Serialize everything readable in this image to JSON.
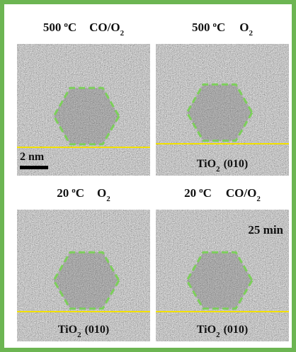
{
  "panels": [
    {
      "temperature": "500",
      "degree": "o",
      "unit": "C",
      "gas": "CO/O",
      "gas_subscript": "2",
      "scale_bar": "2 nm"
    },
    {
      "temperature": "500",
      "degree": "o",
      "unit": "C",
      "gas": "O",
      "gas_subscript": "2",
      "substrate": "TiO",
      "substrate_subscript": "2",
      "substrate_facet": "(010)"
    },
    {
      "temperature": "20",
      "degree": "o",
      "unit": "C",
      "gas": "O",
      "gas_subscript": "2",
      "substrate": "TiO",
      "substrate_subscript": "2",
      "substrate_facet": "(010)"
    },
    {
      "temperature": "20",
      "degree": "o",
      "unit": "C",
      "gas": "CO/O",
      "gas_subscript": "2",
      "substrate": "TiO",
      "substrate_subscript": "2",
      "substrate_facet": "(010)",
      "time": "25 min"
    }
  ]
}
